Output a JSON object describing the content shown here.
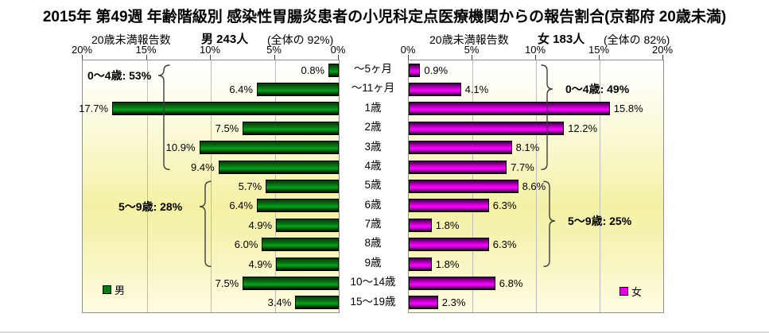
{
  "title": "2015年 第49週 年齢階級別 感染性胃腸炎患者の小児科定点医療機関からの報告割合(京都府 20歳未満)",
  "panels": {
    "male": {
      "count_label": "20歳未満報告数",
      "value": "男 243人",
      "share": "(全体の 92%)",
      "legend": "男"
    },
    "female": {
      "count_label": "20歳未満報告数",
      "value": "女 183人",
      "share": "(全体の 82%)",
      "legend": "女"
    }
  },
  "chart_data": {
    "type": "bar",
    "orientation": "horizontal",
    "categories": [
      "～5ヶ月",
      "～11ヶ月",
      "1歳",
      "2歳",
      "3歳",
      "4歳",
      "5歳",
      "6歳",
      "7歳",
      "8歳",
      "9歳",
      "10～14歳",
      "15～19歳"
    ],
    "series": [
      {
        "name": "男",
        "panel": "male",
        "color": "#008000",
        "axis_direction": "right-to-left",
        "values": [
          0.8,
          6.4,
          17.7,
          7.5,
          10.9,
          9.4,
          5.7,
          6.4,
          4.9,
          6.0,
          4.9,
          7.5,
          3.4
        ]
      },
      {
        "name": "女",
        "panel": "female",
        "color": "#ff00ff",
        "axis_direction": "left-to-right",
        "values": [
          0.9,
          4.1,
          15.8,
          12.2,
          8.1,
          7.7,
          8.6,
          6.3,
          1.8,
          6.3,
          1.8,
          6.8,
          2.3
        ]
      }
    ],
    "xlim": [
      0,
      20
    ],
    "tick_step": 5,
    "tick_labels_male": [
      "20%",
      "15%",
      "10%",
      "5%",
      "0%"
    ],
    "tick_labels_female": [
      "0%",
      "5%",
      "10%",
      "15%",
      "20%"
    ],
    "value_label_suffix": "%",
    "grid": true,
    "annotations": [
      {
        "panel": "male",
        "label": "0～4歳: 53%",
        "row_start": 0,
        "row_end": 5
      },
      {
        "panel": "male",
        "label": "5～9歳: 28%",
        "row_start": 6,
        "row_end": 10
      },
      {
        "panel": "female",
        "label": "0～4歳: 49%",
        "row_start": 0,
        "row_end": 5
      },
      {
        "panel": "female",
        "label": "5～9歳: 25%",
        "row_start": 6,
        "row_end": 10
      }
    ]
  }
}
